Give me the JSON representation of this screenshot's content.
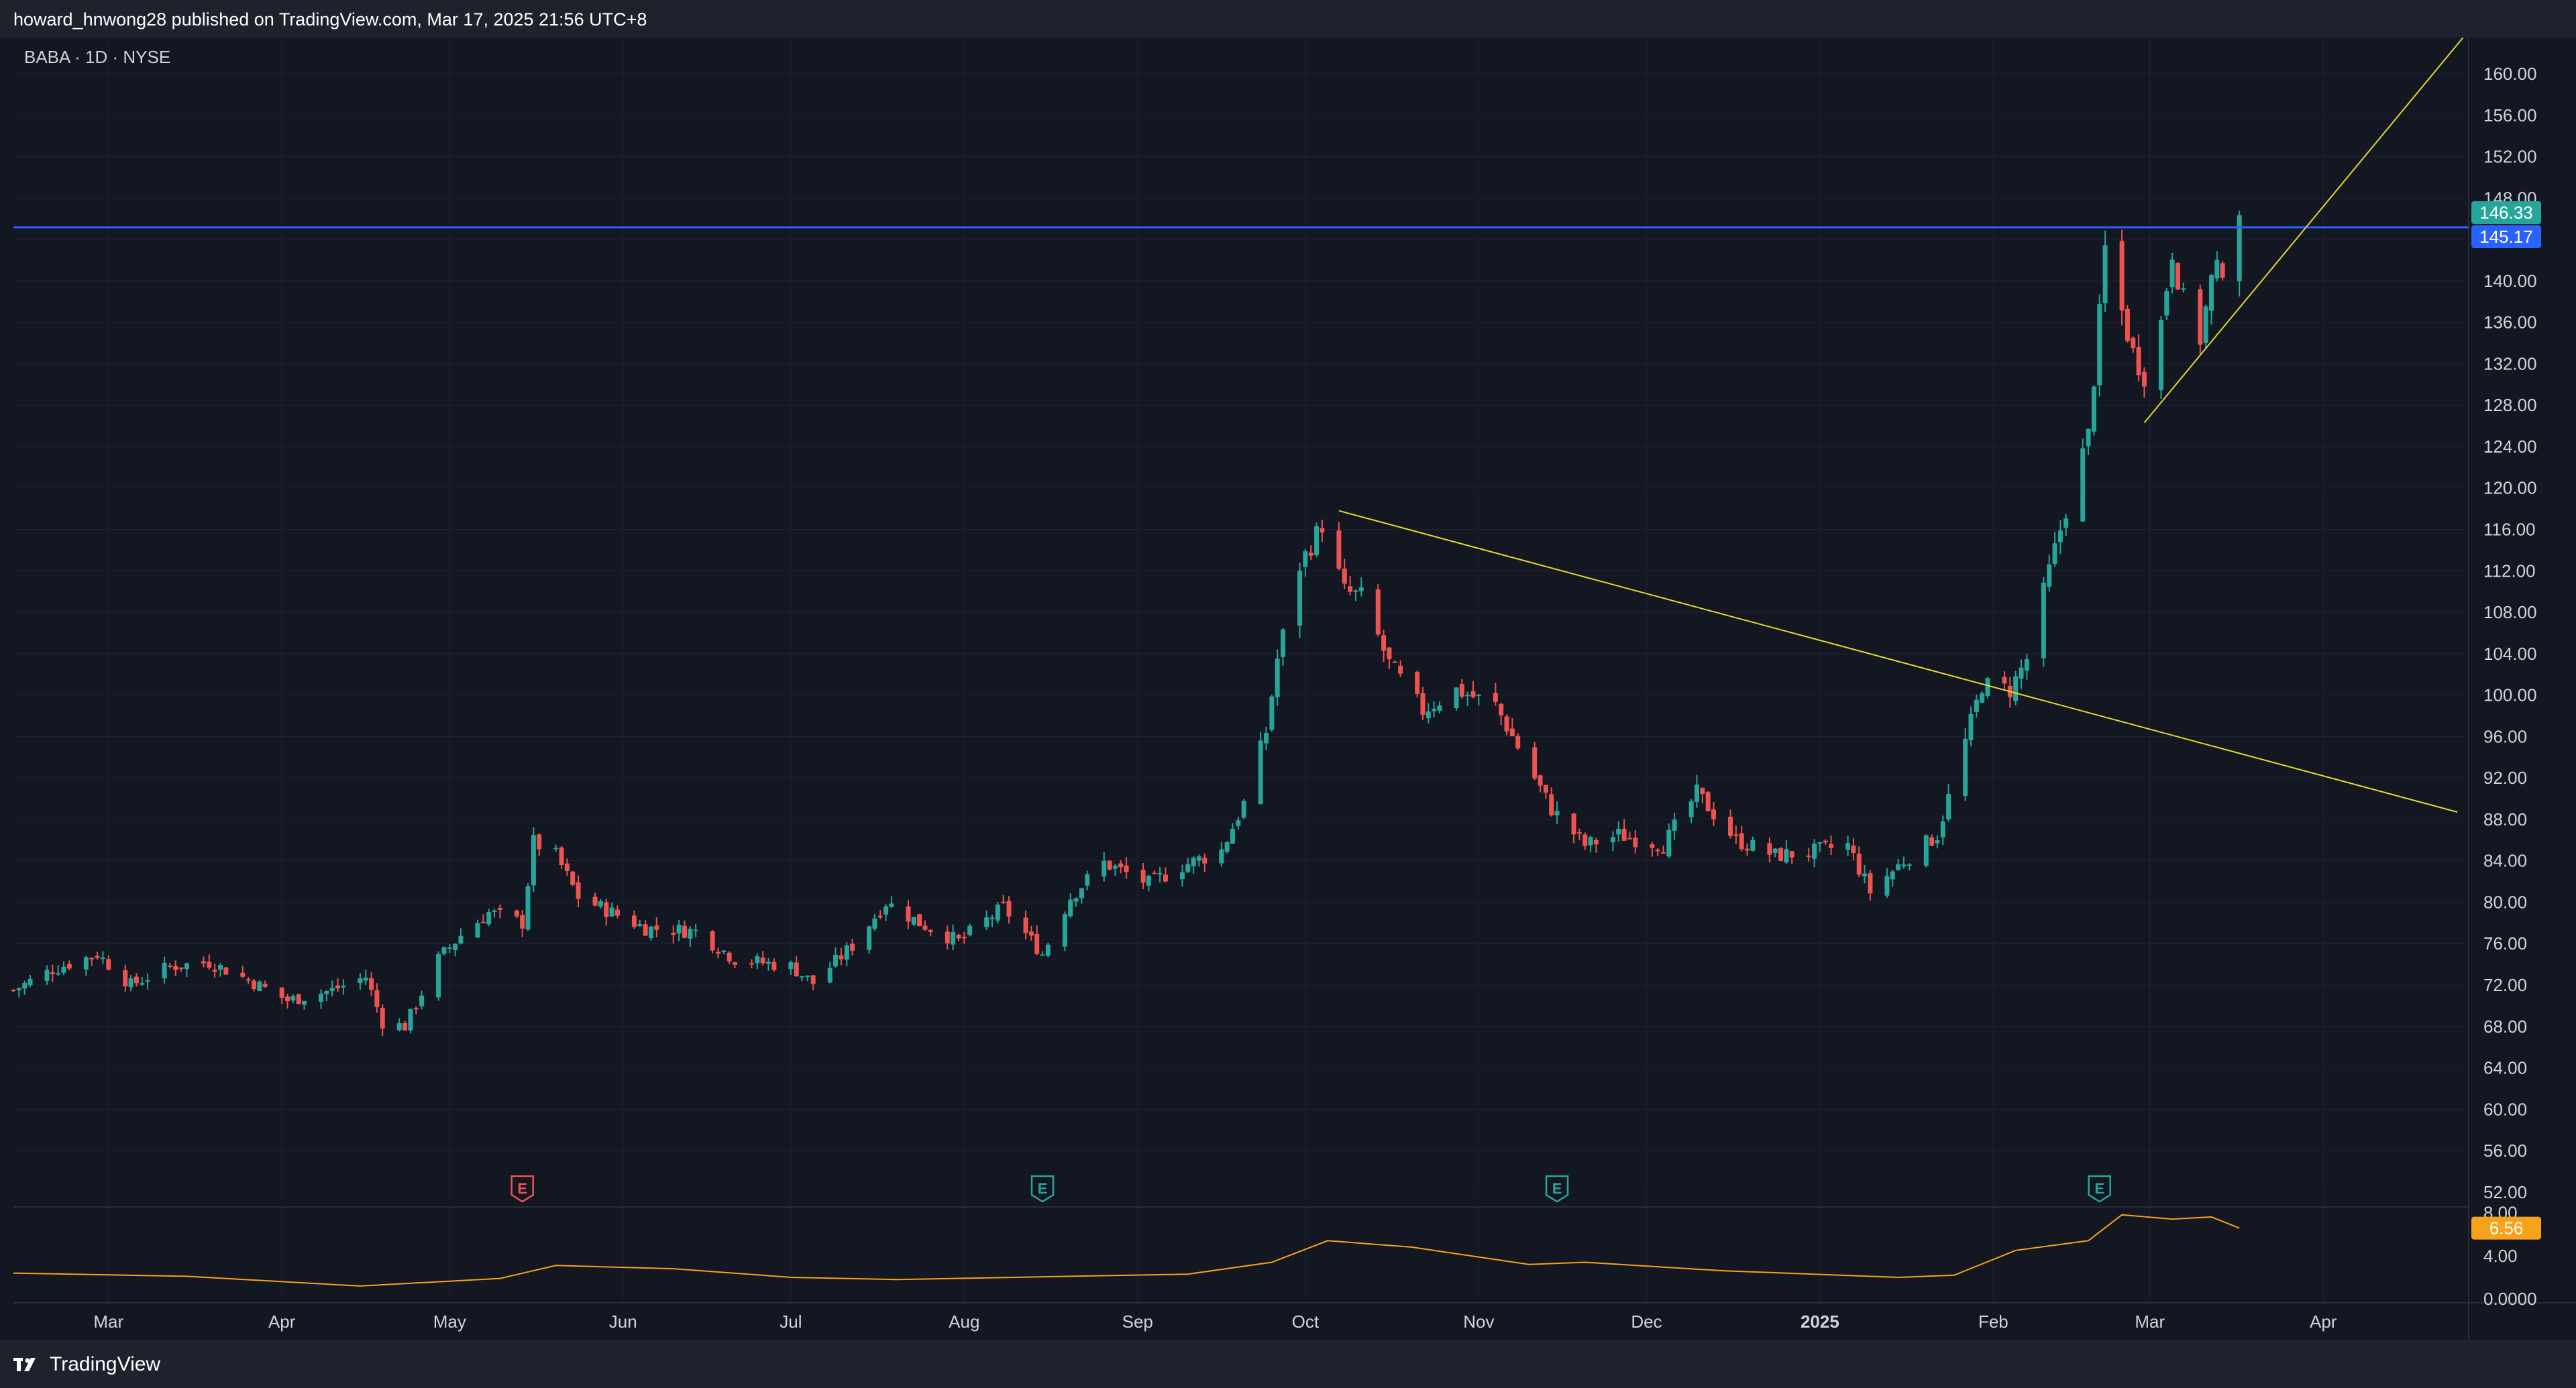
{
  "header": {
    "publish_text": "howard_hnwong28 published on TradingView.com, Mar 17, 2025 21:56 UTC+8"
  },
  "footer": {
    "brand_name": "TradingView"
  },
  "colors": {
    "background": "#131722",
    "panel": "#1e222d",
    "grid": "#1f2330",
    "up": "#26a69a",
    "down": "#ef5350",
    "horizontal_line": "#2962ff",
    "trendline": "#e5d72a",
    "atr_line": "#f7a21b",
    "earnings_up": "#26a69a",
    "earnings_down": "#ef5350"
  },
  "chart_data": {
    "type": "candlestick",
    "symbol_label": "BABA · 1D · NYSE",
    "price_axis": {
      "ticks": [
        "160.00",
        "156.00",
        "152.00",
        "148.00",
        "144.00",
        "140.00",
        "136.00",
        "132.00",
        "128.00",
        "124.00",
        "120.00",
        "116.00",
        "112.00",
        "108.00",
        "104.00",
        "100.00",
        "96.00",
        "92.00",
        "88.00",
        "84.00",
        "80.00",
        "76.00",
        "72.00",
        "68.00",
        "64.00",
        "60.00",
        "56.00",
        "52.00"
      ],
      "ylim": [
        50.5,
        163.5
      ]
    },
    "time_axis": {
      "labels": [
        "Mar",
        "Apr",
        "May",
        "Jun",
        "Jul",
        "Aug",
        "Sep",
        "Oct",
        "Nov",
        "Dec",
        "2025",
        "Feb",
        "Mar",
        "Apr"
      ],
      "bold": "2025"
    },
    "last_price_label": "146.33",
    "horizontal_line": {
      "price": 145.17,
      "label": "145.17"
    },
    "trendlines": [
      {
        "from": [
          "2024-10-07",
          117.8
        ],
        "to": [
          "2025-04-25",
          88.7
        ]
      },
      {
        "from": [
          "2025-02-28",
          126.3
        ],
        "to": [
          "2025-04-26",
          163.5
        ]
      }
    ],
    "earnings_markers": [
      {
        "date": "2024-05-14",
        "label": "E",
        "tone": "down"
      },
      {
        "date": "2024-08-15",
        "label": "E",
        "tone": "up"
      },
      {
        "date": "2024-11-15",
        "label": "E",
        "tone": "up"
      },
      {
        "date": "2025-02-20",
        "label": "E",
        "tone": "up"
      }
    ],
    "price_path": [
      [
        "2024-02-13",
        71.5
      ],
      [
        "2024-02-20",
        73.5
      ],
      [
        "2024-02-28",
        75.0
      ],
      [
        "2024-03-05",
        72.0
      ],
      [
        "2024-03-12",
        73.8
      ],
      [
        "2024-03-19",
        74.2
      ],
      [
        "2024-03-26",
        72.5
      ],
      [
        "2024-04-02",
        70.5
      ],
      [
        "2024-04-10",
        71.5
      ],
      [
        "2024-04-16",
        72.8
      ],
      [
        "2024-04-19",
        68.4
      ],
      [
        "2024-04-23",
        68.0
      ],
      [
        "2024-04-29",
        74.5
      ],
      [
        "2024-05-03",
        76.8
      ],
      [
        "2024-05-08",
        79.0
      ],
      [
        "2024-05-14",
        78.0
      ],
      [
        "2024-05-16",
        85.8
      ],
      [
        "2024-05-20",
        84.5
      ],
      [
        "2024-05-24",
        80.5
      ],
      [
        "2024-06-05",
        77.5
      ],
      [
        "2024-06-14",
        77.2
      ],
      [
        "2024-06-21",
        74.5
      ],
      [
        "2024-07-01",
        73.8
      ],
      [
        "2024-07-05",
        72.2
      ],
      [
        "2024-07-12",
        75.8
      ],
      [
        "2024-07-18",
        80.0
      ],
      [
        "2024-07-24",
        78.0
      ],
      [
        "2024-07-31",
        76.2
      ],
      [
        "2024-08-08",
        79.5
      ],
      [
        "2024-08-15",
        75.0
      ],
      [
        "2024-08-20",
        80.5
      ],
      [
        "2024-08-26",
        83.8
      ],
      [
        "2024-09-03",
        81.8
      ],
      [
        "2024-09-09",
        83.5
      ],
      [
        "2024-09-16",
        85.0
      ],
      [
        "2024-09-20",
        89.5
      ],
      [
        "2024-09-24",
        96.5
      ],
      [
        "2024-09-26",
        103.5
      ],
      [
        "2024-09-30",
        112.5
      ],
      [
        "2024-10-04",
        116.5
      ],
      [
        "2024-10-08",
        110.0
      ],
      [
        "2024-10-11",
        109.5
      ],
      [
        "2024-10-16",
        103.0
      ],
      [
        "2024-10-22",
        98.5
      ],
      [
        "2024-10-28",
        100.5
      ],
      [
        "2024-11-04",
        99.0
      ],
      [
        "2024-11-08",
        95.0
      ],
      [
        "2024-11-14",
        89.0
      ],
      [
        "2024-11-20",
        85.5
      ],
      [
        "2024-11-26",
        86.5
      ],
      [
        "2024-12-04",
        85.5
      ],
      [
        "2024-12-10",
        90.5
      ],
      [
        "2024-12-17",
        86.0
      ],
      [
        "2024-12-24",
        84.5
      ],
      [
        "2024-12-30",
        84.8
      ],
      [
        "2025-01-06",
        85.5
      ],
      [
        "2025-01-10",
        81.0
      ],
      [
        "2025-01-16",
        84.0
      ],
      [
        "2025-01-22",
        86.5
      ],
      [
        "2025-01-27",
        95.5
      ],
      [
        "2025-01-30",
        101.0
      ],
      [
        "2025-02-04",
        100.5
      ],
      [
        "2025-02-07",
        103.5
      ],
      [
        "2025-02-11",
        112.0
      ],
      [
        "2025-02-14",
        118.0
      ],
      [
        "2025-02-18",
        125.0
      ],
      [
        "2025-02-20",
        136.5
      ],
      [
        "2025-02-21",
        143.0
      ],
      [
        "2025-02-24",
        137.0
      ],
      [
        "2025-02-26",
        133.0
      ],
      [
        "2025-02-28",
        131.0
      ],
      [
        "2025-03-03",
        136.0
      ],
      [
        "2025-03-05",
        143.0
      ],
      [
        "2025-03-07",
        138.0
      ],
      [
        "2025-03-10",
        134.5
      ],
      [
        "2025-03-12",
        140.0
      ],
      [
        "2025-03-14",
        141.5
      ],
      [
        "2025-03-17",
        146.33
      ]
    ],
    "indicator": {
      "ticks": [
        "8.00",
        "4.00",
        "0.0000"
      ],
      "ylim": [
        -0.3,
        8.4
      ],
      "last_value_label": "6.56",
      "path": [
        [
          "2024-02-13",
          2.4
        ],
        [
          "2024-03-15",
          2.1
        ],
        [
          "2024-04-15",
          1.2
        ],
        [
          "2024-05-10",
          1.9
        ],
        [
          "2024-05-20",
          3.1
        ],
        [
          "2024-06-10",
          2.8
        ],
        [
          "2024-07-01",
          2.0
        ],
        [
          "2024-07-20",
          1.8
        ],
        [
          "2024-08-20",
          2.1
        ],
        [
          "2024-09-10",
          2.3
        ],
        [
          "2024-09-25",
          3.4
        ],
        [
          "2024-10-05",
          5.4
        ],
        [
          "2024-10-20",
          4.8
        ],
        [
          "2024-11-10",
          3.2
        ],
        [
          "2024-11-20",
          3.4
        ],
        [
          "2024-12-15",
          2.6
        ],
        [
          "2025-01-15",
          2.0
        ],
        [
          "2025-01-25",
          2.2
        ],
        [
          "2025-02-05",
          4.5
        ],
        [
          "2025-02-18",
          5.4
        ],
        [
          "2025-02-24",
          7.8
        ],
        [
          "2025-03-05",
          7.4
        ],
        [
          "2025-03-12",
          7.6
        ],
        [
          "2025-03-17",
          6.56
        ]
      ]
    }
  }
}
